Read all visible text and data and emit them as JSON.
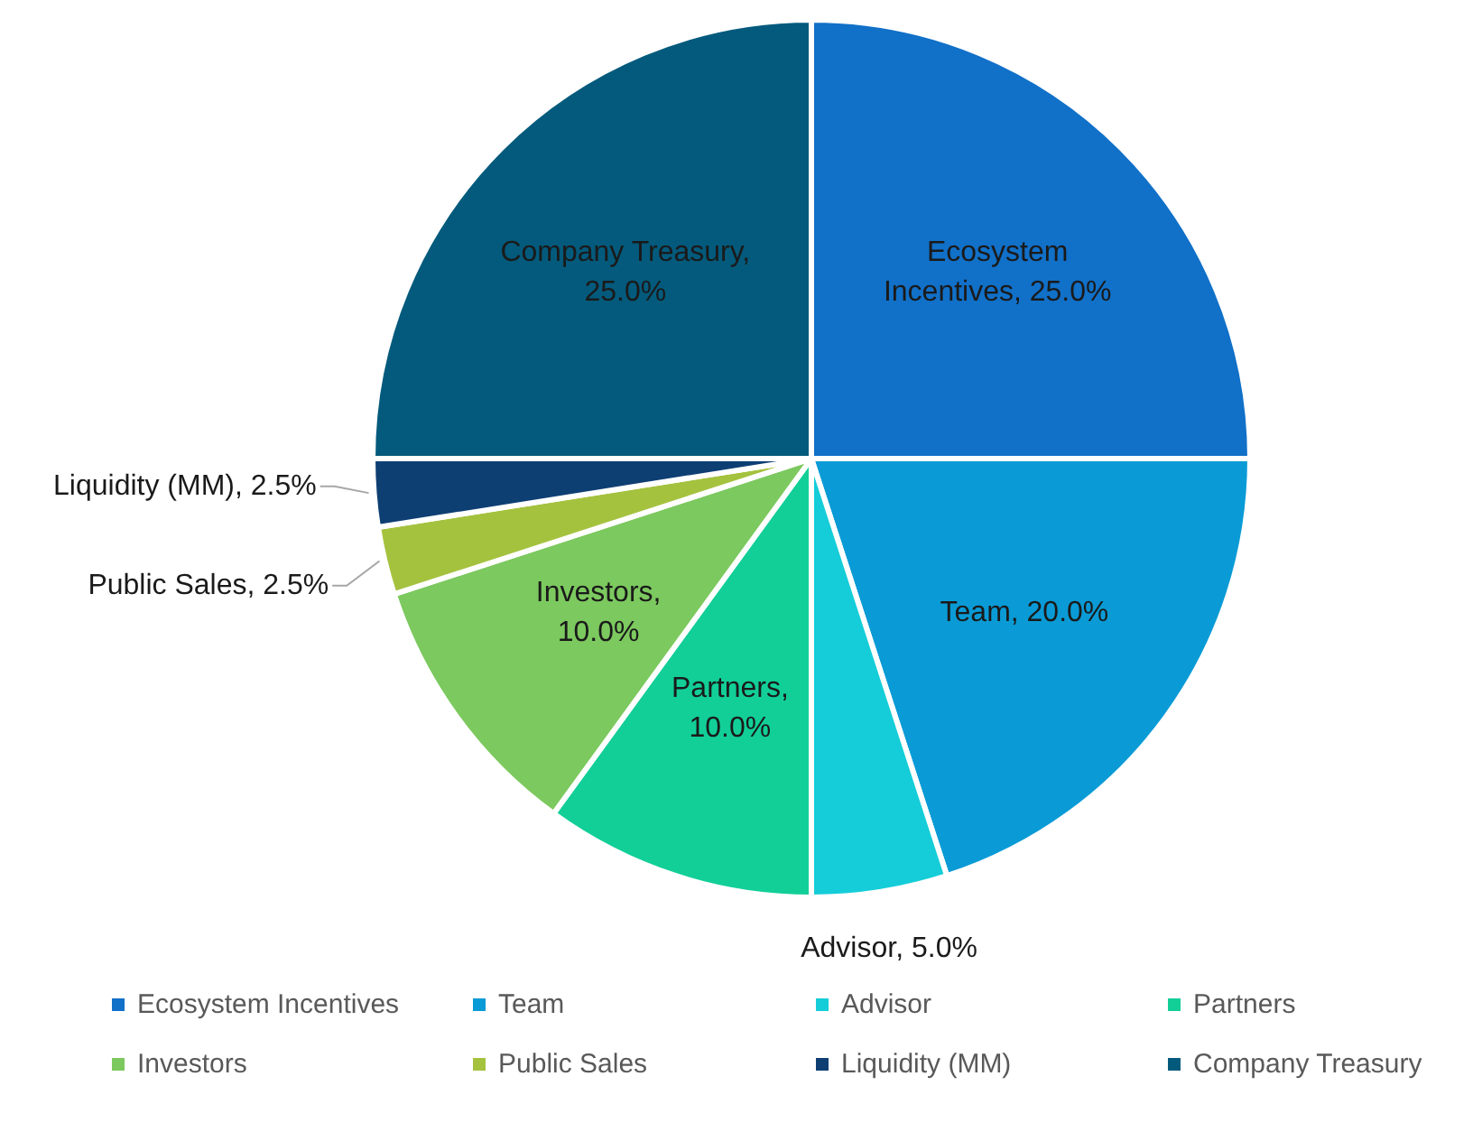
{
  "chart_data": {
    "type": "pie",
    "categories": [
      "Ecosystem Incentives",
      "Team",
      "Advisor",
      "Partners",
      "Investors",
      "Public Sales",
      "Liquidity (MM)",
      "Company Treasury"
    ],
    "values": [
      25,
      20,
      5,
      10,
      10,
      2.5,
      2.5,
      25
    ],
    "value_labels": [
      "Ecosystem Incentives, 25.0%",
      "Team, 20.0%",
      "Advisor, 5.0%",
      "Partners, 10.0%",
      "Investors, 10.0%",
      "Public Sales, 2.5%",
      "Liquidity (MM), 2.5%",
      "Company Treasury, 25.0%"
    ],
    "colors": [
      "#1170c8",
      "#0a9bd6",
      "#14cdd8",
      "#12cf98",
      "#7cc95f",
      "#a5c23f",
      "#0e3f73",
      "#035a7c"
    ],
    "legend": "bottom"
  }
}
